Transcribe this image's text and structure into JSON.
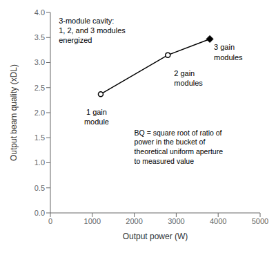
{
  "chart_data": {
    "type": "line",
    "x": [
      1200,
      2800,
      3800
    ],
    "values": [
      2.37,
      3.15,
      3.47
    ],
    "color": "#000000",
    "marker": [
      "circle",
      "circle",
      "diamond"
    ],
    "xlabel": "Output power (W)",
    "ylabel": "Output beam quality (xDL)",
    "xlim": [
      0,
      5000
    ],
    "ylim": [
      0,
      4
    ],
    "xticks": [
      0,
      1000,
      2000,
      3000,
      4000,
      5000
    ],
    "yticks": [
      {
        "value": 0,
        "label": "0.0"
      },
      0.5,
      {
        "value": 1,
        "label": "1.0"
      },
      1.5,
      {
        "value": 2,
        "label": "2.0"
      },
      2.5,
      {
        "value": 3,
        "label": "3.0"
      },
      3.5,
      {
        "value": 4,
        "label": "4.0"
      }
    ],
    "annotations": [
      "3-module cavity:\n1, 2, and 3 modules\nenergized",
      "BQ = square root of ratio of\npower in the bucket of\ntheoretical uniform aperture\nto measured value"
    ],
    "point_labels": [
      "1 gain\nmodule",
      "2 gain\nmodules",
      "3 gain\nmodules"
    ]
  }
}
